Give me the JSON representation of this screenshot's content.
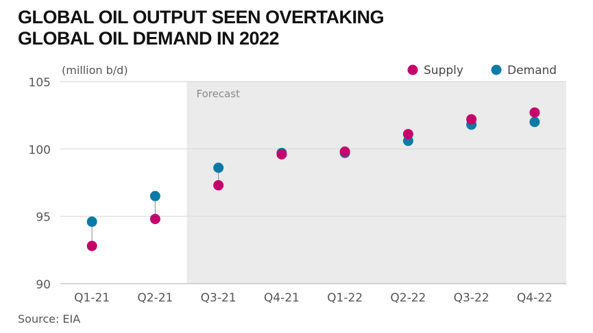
{
  "title_lines": [
    "GLOBAL OIL OUTPUT SEEN OVERTAKING",
    "GLOBAL OIL DEMAND IN 2022"
  ],
  "source": "Source: EIA",
  "chart_data": {
    "type": "scatter",
    "title": "GLOBAL OIL OUTPUT SEEN OVERTAKING GLOBAL OIL DEMAND IN 2022",
    "unit_label": "(million b/d)",
    "categories": [
      "Q1-21",
      "Q2-21",
      "Q3-21",
      "Q4-21",
      "Q1-22",
      "Q2-22",
      "Q3-22",
      "Q4-22"
    ],
    "series": [
      {
        "name": "Supply",
        "color": "#c5006b",
        "values": [
          92.8,
          94.8,
          97.3,
          99.6,
          99.8,
          101.1,
          102.2,
          102.7
        ]
      },
      {
        "name": "Demand",
        "color": "#0a7aa6",
        "values": [
          94.6,
          96.5,
          98.6,
          99.7,
          99.7,
          100.6,
          101.8,
          102.0
        ]
      }
    ],
    "y_ticks": [
      90,
      95,
      100,
      105
    ],
    "ylim": [
      90,
      105
    ],
    "forecast_label": "Forecast",
    "forecast_start_category": "Q3-21",
    "legend_position": "top-right",
    "grid": true
  }
}
